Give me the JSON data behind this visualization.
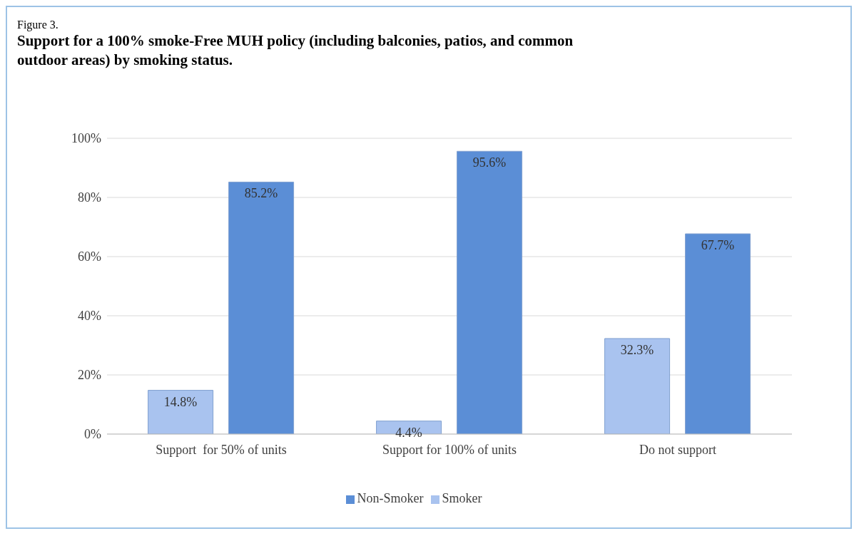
{
  "chart_data": {
    "type": "bar",
    "title": "Support for a 100% smoke-Free MUH policy (including balconies, patios, and common outdoor areas) by smoking status.",
    "annotations": [
      "Figure 3."
    ],
    "categories": [
      "Support  for 50% of units",
      "Support for 100% of units",
      "Do not support"
    ],
    "series": [
      {
        "name": "Smoker",
        "color": "#a9c3ef",
        "values": [
          14.8,
          4.4,
          32.3
        ],
        "value_labels": [
          "14.8%",
          "4.4%",
          "32.3%"
        ]
      },
      {
        "name": "Non-Smoker",
        "color": "#5b8ed6",
        "values": [
          85.2,
          95.6,
          67.7
        ],
        "value_labels": [
          "85.2%",
          "95.6%",
          "67.7%"
        ]
      }
    ],
    "ylim": [
      0,
      100
    ],
    "yticks": [
      {
        "value": 0,
        "label": "0%"
      },
      {
        "value": 20,
        "label": "20%"
      },
      {
        "value": 40,
        "label": "40%"
      },
      {
        "value": 60,
        "label": "60%"
      },
      {
        "value": 80,
        "label": "80%"
      },
      {
        "value": 100,
        "label": "100%"
      }
    ],
    "grid": "y",
    "legend": "bottom"
  }
}
